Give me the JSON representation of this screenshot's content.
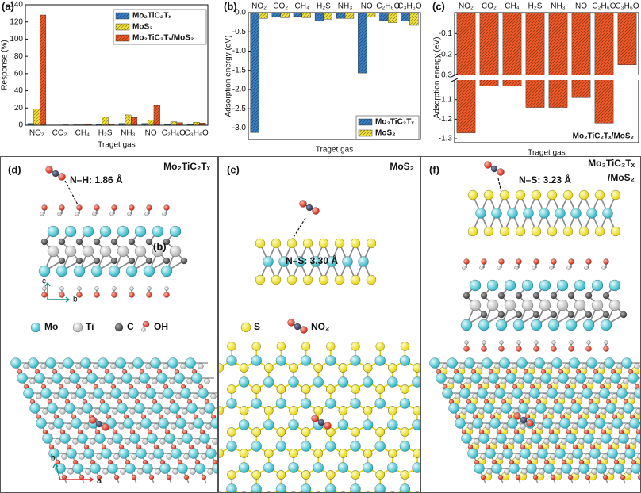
{
  "chart_data": [
    {
      "type": "bar",
      "panel_label": "(a)",
      "ylabel": "Response (%)",
      "xlabel": "Traget gas",
      "categories": [
        "NO₂",
        "CO₂",
        "CH₄",
        "H₂S",
        "NH₃",
        "NO",
        "C₂H₆O",
        "C₃H₆O"
      ],
      "series": [
        {
          "name": "Mo₂TiC₂Tₓ",
          "color": "#3a7fc6",
          "values": [
            2,
            0.3,
            0.5,
            1,
            2,
            2,
            1,
            1
          ]
        },
        {
          "name": "MoS₂",
          "color": "#f2e23c",
          "values": [
            19,
            0.3,
            0.5,
            9.5,
            12,
            6,
            4,
            3.5
          ]
        },
        {
          "name": "Mo₂TiC₂Tₓ/MoS₂",
          "color": "#f05a28",
          "values": [
            128,
            0.5,
            1,
            1.5,
            9,
            23,
            3,
            2.5
          ]
        }
      ],
      "ylim": [
        0,
        140
      ],
      "yticks": [
        0,
        20,
        40,
        60,
        80,
        100,
        120,
        140
      ],
      "legend": "upper right",
      "hatch": true,
      "xaxis": "bottom"
    },
    {
      "type": "bar",
      "panel_label": "(b)",
      "ylabel": "Adsorption energy (eV)",
      "xlabel": "Traget gas",
      "categories": [
        "NO₂",
        "CO₂",
        "CH₄",
        "H₂S",
        "NH₃",
        "NO",
        "C₂H₆O",
        "C₃H₆O"
      ],
      "series": [
        {
          "name": "Mo₂TiC₂Tₓ",
          "color": "#3a7fc6",
          "values": [
            -3.12,
            -0.12,
            -0.1,
            -0.22,
            -0.15,
            -1.57,
            -0.2,
            -0.22
          ]
        },
        {
          "name": "MoS₂",
          "color": "#f2e23c",
          "values": [
            -0.15,
            -0.13,
            -0.13,
            -0.17,
            -0.15,
            -0.12,
            -0.26,
            -0.33
          ]
        }
      ],
      "ylim": [
        -3.3,
        0
      ],
      "yticks": [
        {
          "value": 0,
          "label": "0.0"
        },
        -0.5,
        {
          "value": -1,
          "label": "-1.0"
        },
        -1.5,
        {
          "value": -2,
          "label": "-2.0"
        },
        -2.5,
        {
          "value": -3,
          "label": "-3.0"
        }
      ],
      "legend": "lower right",
      "hatch": true,
      "xaxis": "top"
    },
    {
      "type": "bar",
      "panel_label": "(c)",
      "ylabel": "Adsorption energy (eV)",
      "xlabel": "Traget gas",
      "categories": [
        "NO₂",
        "CO₂",
        "CH₄",
        "H₂S",
        "NH₃",
        "NO",
        "C₂H₆O",
        "C₃H₆O"
      ],
      "series": [
        {
          "name": "Mo₂TiC₂Tₓ/MoS₂",
          "color": "#f05a28",
          "values": [
            -1.27,
            -1.03,
            -1.03,
            -1.14,
            -1.14,
            -1.09,
            -1.22,
            -0.25
          ]
        }
      ],
      "ylim": [
        -1.32,
        0
      ],
      "ybreak": [
        -1.0,
        -0.3
      ],
      "yticks": [
        -0.1,
        -0.2,
        -0.3,
        -1.1,
        -1.2,
        -1.3
      ],
      "legend": "lower right",
      "legend_marker": false,
      "hatch": true,
      "xaxis": "top"
    }
  ],
  "panels": [
    {
      "label": "(d)",
      "title": "Mo₂TiC₂Tₓ",
      "bond": "N–H: 1.86 Å",
      "stray_label": "(b)",
      "axes_side": [
        "c",
        "b"
      ],
      "legend": [
        "Mo",
        "Ti",
        "C",
        "OH"
      ],
      "axes_top": [
        "b",
        "a"
      ]
    },
    {
      "label": "(e)",
      "title": "MoS₂",
      "bond": "N–S: 3.30 Å",
      "legend": [
        "S",
        "NO₂"
      ]
    },
    {
      "label": "(f)",
      "title": [
        "Mo₂TiC₂Tₓ",
        "/MoS₂"
      ],
      "bond": "N–S: 3.23 Å"
    }
  ]
}
